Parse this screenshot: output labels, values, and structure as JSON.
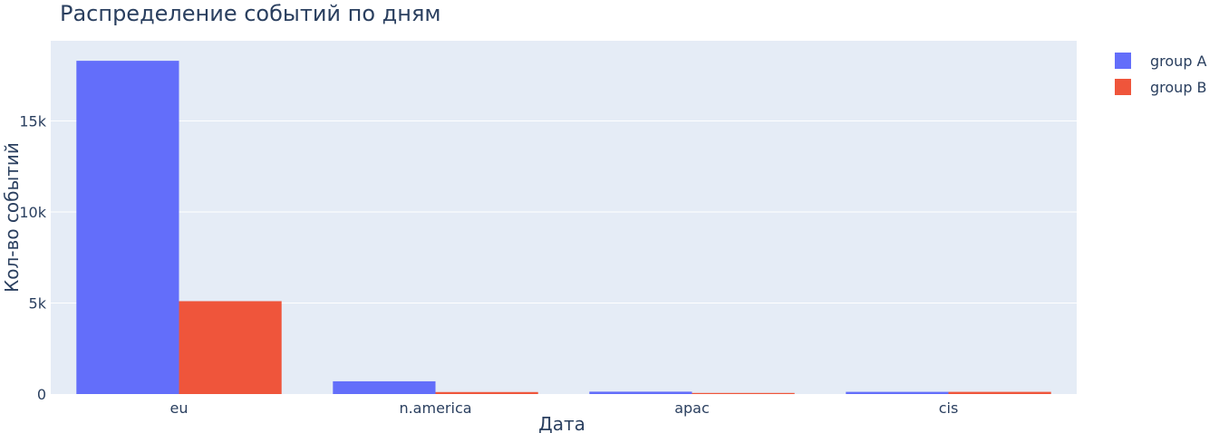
{
  "chart_data": {
    "type": "bar",
    "title": "Распределение событий по дням",
    "xlabel": "Дата",
    "ylabel": "Кол-во событий",
    "categories": [
      "eu",
      "n.america",
      "apac",
      "cis"
    ],
    "series": [
      {
        "name": "group A",
        "color": "#636efa",
        "values": [
          18300,
          700,
          130,
          120
        ]
      },
      {
        "name": "group B",
        "color": "#ef553b",
        "values": [
          5100,
          110,
          60,
          120
        ]
      }
    ],
    "ylim": [
      0,
      19400
    ],
    "yticks": [
      {
        "value": 0,
        "label": "0"
      },
      {
        "value": 5000,
        "label": "5k"
      },
      {
        "value": 10000,
        "label": "10k"
      },
      {
        "value": 15000,
        "label": "15k"
      }
    ],
    "grid": true,
    "legend_position": "top-right",
    "plot_background": "#e5ecf6"
  }
}
